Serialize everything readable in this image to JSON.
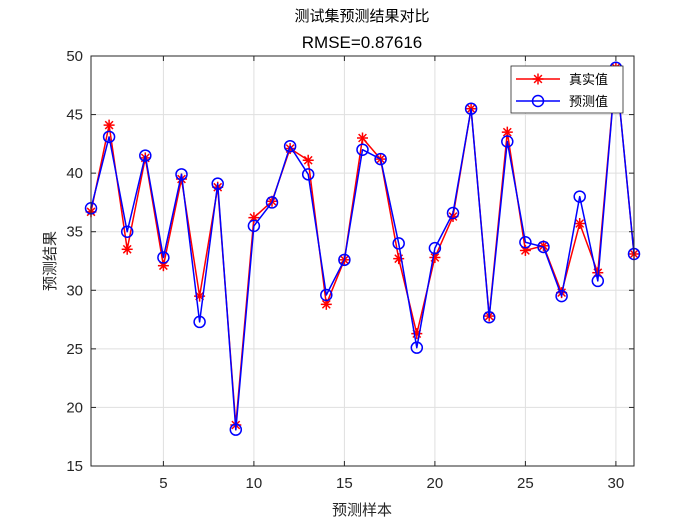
{
  "chart_data": {
    "type": "line",
    "title": "测试集预测结果对比",
    "subtitle": "RMSE=0.87616",
    "xlabel": "预测样本",
    "ylabel": "预测结果",
    "xlim": [
      1,
      31
    ],
    "ylim": [
      15,
      50
    ],
    "xticks": [
      5,
      10,
      15,
      20,
      25,
      30
    ],
    "yticks": [
      15,
      20,
      25,
      30,
      35,
      40,
      45,
      50
    ],
    "grid": true,
    "legend_position": "top-right",
    "x": [
      1,
      2,
      3,
      4,
      5,
      6,
      7,
      8,
      9,
      10,
      11,
      12,
      13,
      14,
      15,
      16,
      17,
      18,
      19,
      20,
      21,
      22,
      23,
      24,
      25,
      26,
      27,
      28,
      29,
      30,
      31
    ],
    "series": [
      {
        "name": "真实值",
        "color": "#ff0000",
        "marker": "asterisk",
        "values": [
          36.7,
          44.1,
          33.5,
          41.3,
          32.1,
          39.5,
          29.5,
          38.8,
          18.5,
          36.2,
          37.6,
          42.1,
          41.1,
          28.8,
          32.6,
          43.0,
          41.2,
          32.7,
          26.3,
          32.8,
          36.3,
          45.5,
          27.8,
          43.5,
          33.4,
          33.8,
          29.8,
          35.7,
          31.5,
          49.0,
          33.1
        ]
      },
      {
        "name": "预测值",
        "color": "#0000ff",
        "marker": "circle",
        "values": [
          37.0,
          43.1,
          35.0,
          41.5,
          32.8,
          39.9,
          27.3,
          39.1,
          18.1,
          35.5,
          37.5,
          42.3,
          39.9,
          29.6,
          32.6,
          42.0,
          41.2,
          34.0,
          25.1,
          33.6,
          36.6,
          45.5,
          27.7,
          42.7,
          34.1,
          33.7,
          29.5,
          38.0,
          30.8,
          49.0,
          33.1
        ]
      }
    ]
  }
}
